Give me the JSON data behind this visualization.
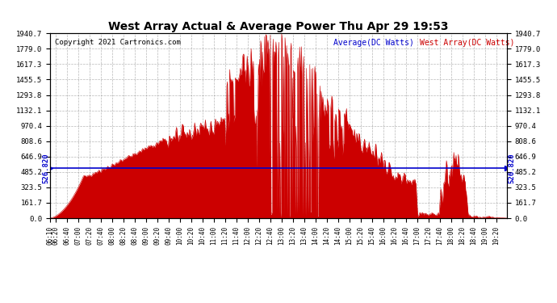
{
  "title": "West Array Actual & Average Power Thu Apr 29 19:53",
  "copyright": "Copyright 2021 Cartronics.com",
  "legend_avg": "Average(DC Watts)",
  "legend_west": "West Array(DC Watts)",
  "avg_value": 526.82,
  "ymax": 1940.7,
  "ymin": 0.0,
  "yticks": [
    0.0,
    161.7,
    323.5,
    485.2,
    646.9,
    808.6,
    970.4,
    1132.1,
    1293.8,
    1455.5,
    1617.3,
    1779.0,
    1940.7
  ],
  "avg_line_color": "#0000cc",
  "fill_color": "#cc0000",
  "line_color": "#cc0000",
  "bg_color": "#ffffff",
  "grid_color": "#888888",
  "title_color": "#000000",
  "copyright_color": "#000000",
  "legend_avg_color": "#0000cc",
  "legend_west_color": "#cc0000",
  "avg_label": "526.820"
}
